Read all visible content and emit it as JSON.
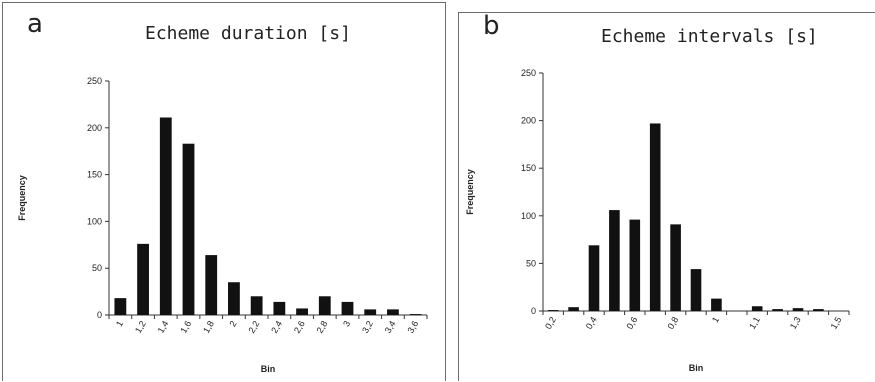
{
  "chart_data": [
    {
      "panel_letter": "a",
      "type": "bar",
      "title": "Echeme duration [s]",
      "xlabel": "Bin",
      "ylabel": "Frequency",
      "ylim": [
        0,
        250
      ],
      "yticks": [
        0,
        50,
        100,
        150,
        200,
        250
      ],
      "grid": false,
      "legend": "none",
      "bar_color": "#111111",
      "categories": [
        "1",
        "1,2",
        "1,4",
        "1,6",
        "1,8",
        "2",
        "2,2",
        "2,4",
        "2,6",
        "2,8",
        "3",
        "3,2",
        "3,4",
        "3,6"
      ],
      "tick_labels": [
        "1",
        "1,2",
        "1,4",
        "1,6",
        "1,8",
        "2",
        "2,2",
        "2,4",
        "2,6",
        "2,8",
        "3",
        "3,2",
        "3,4",
        "3,6"
      ],
      "values": [
        18,
        76,
        211,
        183,
        64,
        35,
        20,
        14,
        7,
        20,
        14,
        6,
        6,
        1
      ]
    },
    {
      "panel_letter": "b",
      "type": "bar",
      "title": "Echeme intervals [s]",
      "xlabel": "Bin",
      "ylabel": "Frequency",
      "ylim": [
        0,
        250
      ],
      "yticks": [
        0,
        50,
        100,
        150,
        200,
        250
      ],
      "grid": false,
      "legend": "none",
      "bar_color": "#111111",
      "categories": [
        "0,2",
        "0,3",
        "0,4",
        "0,5",
        "0,6",
        "0,7",
        "0,8",
        "0,9",
        "1",
        "1,05",
        "1,1",
        "1,2",
        "1,3",
        "1,4",
        "1,5"
      ],
      "tick_labels": [
        "0,2",
        "",
        "0,4",
        "",
        "0,6",
        "",
        "0,8",
        "",
        "1",
        "",
        "1,1",
        "",
        "1,3",
        "",
        "1,5"
      ],
      "values": [
        1,
        4,
        69,
        106,
        96,
        197,
        91,
        44,
        13,
        0,
        5,
        2,
        3,
        2,
        0
      ]
    }
  ]
}
